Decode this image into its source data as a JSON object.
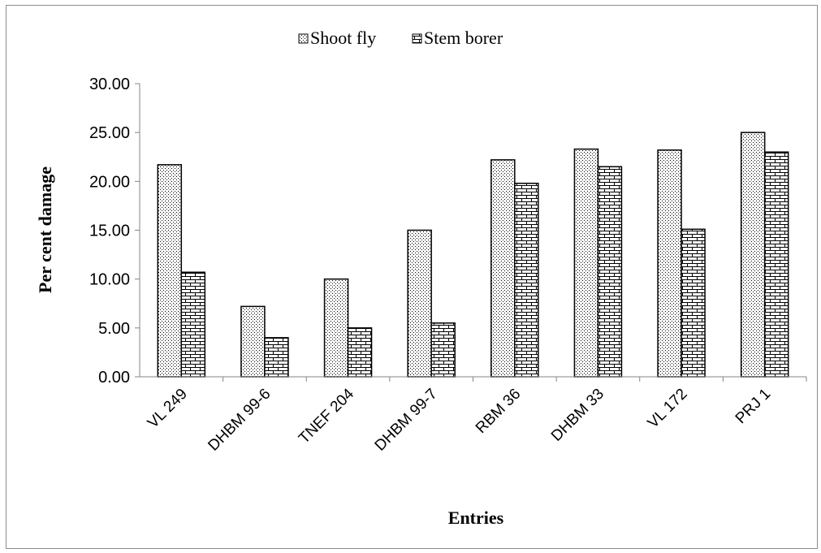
{
  "chart_data": {
    "type": "bar",
    "xlabel": "Entries",
    "ylabel": "Per cent damage",
    "ylim": [
      0,
      30
    ],
    "yticks": [
      "0.00",
      "5.00",
      "10.00",
      "15.00",
      "20.00",
      "25.00",
      "30.00"
    ],
    "categories": [
      "VL 249",
      "DHBM 99-6",
      "TNEF 204",
      "DHBM 99-7",
      "RBM 36",
      "DHBM 33",
      "VL 172",
      "PRJ 1"
    ],
    "series": [
      {
        "name": "Shoot fly",
        "values": [
          21.7,
          7.2,
          10.0,
          15.0,
          22.2,
          23.3,
          23.2,
          25.0
        ]
      },
      {
        "name": "Stem borer",
        "values": [
          10.7,
          4.0,
          5.0,
          5.5,
          19.8,
          21.5,
          15.1,
          23.0
        ]
      }
    ],
    "legend_position": "top",
    "grid": false
  }
}
